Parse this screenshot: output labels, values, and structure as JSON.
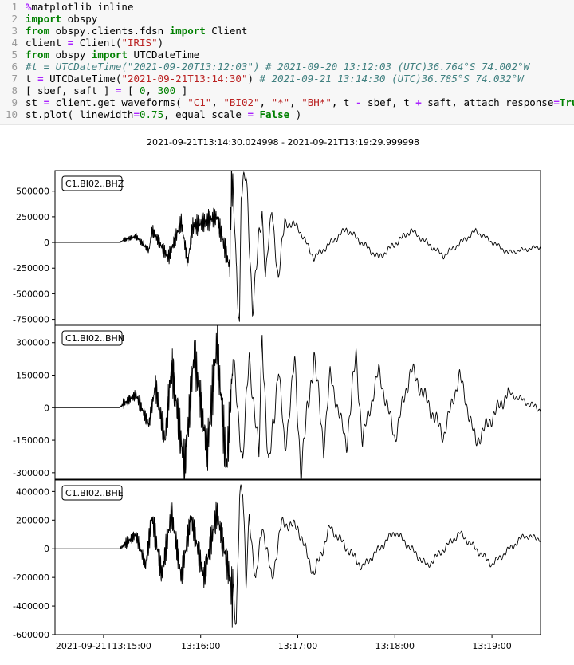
{
  "code": {
    "line_numbers": [
      "1",
      "2",
      "3",
      "4",
      "5",
      "6",
      "7",
      "8",
      "9",
      "10"
    ]
  },
  "plot": {
    "title": "2021-09-21T13:14:30.024998  -  2021-09-21T13:19:29.999998",
    "trace_color": "#000000"
  },
  "chart_data": {
    "type": "line",
    "title": "2021-09-21T13:14:30.024998  -  2021-09-21T13:19:29.999998",
    "x_tick_labels": [
      "2021-09-21T13:15:00",
      "13:16:00",
      "13:17:00",
      "13:18:00",
      "13:19:00"
    ],
    "x_ticks_seconds_from_start": [
      30,
      90,
      150,
      210,
      270
    ],
    "x_range_seconds": [
      0,
      300
    ],
    "series": [
      {
        "name": "C1.BI02..BHZ",
        "yticks": [
          -750000,
          -500000,
          -250000,
          0,
          250000,
          500000
        ],
        "ylim": [
          -800000,
          700000
        ],
        "peaks_seconds": [
          0,
          40,
          42,
          50,
          58,
          60,
          70,
          78,
          82,
          85,
          100,
          108,
          109,
          110,
          112,
          114,
          115,
          118,
          122,
          128,
          130,
          134,
          138,
          142,
          150,
          160,
          180,
          200,
          220,
          240,
          260,
          280,
          300
        ],
        "peaks_values": [
          0,
          0,
          20000,
          60000,
          -80000,
          120000,
          -150000,
          200000,
          -200000,
          150000,
          250000,
          -250000,
          620000,
          500000,
          -300000,
          -780000,
          580000,
          620000,
          -600000,
          280000,
          -300000,
          300000,
          -350000,
          200000,
          150000,
          -150000,
          130000,
          -150000,
          120000,
          -130000,
          110000,
          -100000,
          -40000
        ]
      },
      {
        "name": "C1.BI02..BHN",
        "yticks": [
          -300000,
          -150000,
          0,
          150000,
          300000
        ],
        "ylim": [
          -330000,
          380000
        ],
        "peaks_seconds": [
          0,
          40,
          42,
          50,
          58,
          62,
          68,
          72,
          80,
          86,
          94,
          100,
          106,
          110,
          116,
          120,
          126,
          128,
          132,
          138,
          142,
          148,
          152,
          160,
          166,
          170,
          180,
          186,
          190,
          200,
          210,
          220,
          240,
          250,
          260,
          280,
          300
        ],
        "peaks_values": [
          0,
          0,
          15000,
          60000,
          -80000,
          100000,
          -150000,
          200000,
          -280000,
          250000,
          -200000,
          300000,
          -280000,
          220000,
          -250000,
          240000,
          -230000,
          360000,
          -310000,
          200000,
          -200000,
          210000,
          -290000,
          250000,
          -180000,
          150000,
          -170000,
          240000,
          -150000,
          170000,
          -140000,
          180000,
          -130000,
          150000,
          -160000,
          70000,
          -10000
        ]
      },
      {
        "name": "C1.BI02..BHE",
        "yticks": [
          -600000,
          -400000,
          -200000,
          0,
          200000,
          400000
        ],
        "ylim": [
          -600000,
          480000
        ],
        "peaks_seconds": [
          0,
          40,
          42,
          50,
          56,
          60,
          66,
          72,
          78,
          84,
          92,
          100,
          108,
          112,
          114,
          116,
          118,
          120,
          124,
          128,
          134,
          140,
          150,
          160,
          170,
          190,
          210,
          230,
          250,
          270,
          290,
          300
        ],
        "peaks_values": [
          0,
          0,
          20000,
          100000,
          -120000,
          220000,
          -180000,
          250000,
          -200000,
          220000,
          -200000,
          250000,
          -200000,
          -550000,
          440000,
          420000,
          -300000,
          250000,
          -250000,
          180000,
          -220000,
          180000,
          150000,
          -180000,
          150000,
          -130000,
          120000,
          -120000,
          110000,
          -110000,
          90000,
          70000
        ]
      }
    ]
  }
}
